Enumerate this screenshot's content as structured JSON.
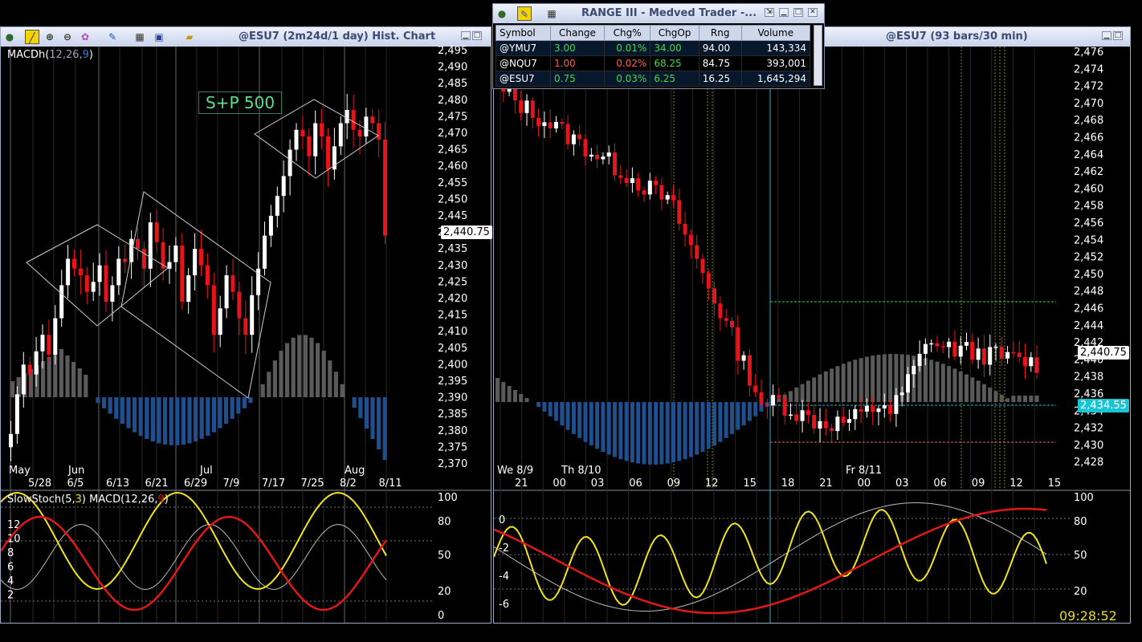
{
  "left_window": {
    "title": "@ESU7 (2m24d/1 day) Hist. Chart",
    "indicator_label": "MACDh(12,26,9)",
    "indicator_name": "MACDh(",
    "indicator_params": "12,26,",
    "indicator_signal": "9",
    "indicator_close": ")",
    "annotation": "S+P 500",
    "last_price": "2,440.75",
    "y_ticks": [
      "2,495",
      "2,490",
      "2,485",
      "2,480",
      "2,475",
      "2,470",
      "2,465",
      "2,460",
      "2,455",
      "2,450",
      "2,445",
      "2,440",
      "2,435",
      "2,430",
      "2,425",
      "2,420",
      "2,415",
      "2,410",
      "2,405",
      "2,400",
      "2,395",
      "2,390",
      "2,385",
      "2,380",
      "2,375",
      "2,370"
    ],
    "month_labels": [
      "May",
      "Jun",
      "Jul",
      "Aug"
    ],
    "date_labels": [
      "5/28",
      "6/5",
      "6/13",
      "6/21",
      "6/29",
      "7/9",
      "7/17",
      "7/25",
      "8/2",
      "8/11"
    ],
    "lower_label": "SlowStoch(5,3) MACD(12,26,9)",
    "lower_y_left": [
      "12",
      "10",
      "8",
      "6",
      "4",
      "2"
    ],
    "lower_y_right": [
      "100",
      "80",
      "50",
      "20",
      "0"
    ]
  },
  "right_window": {
    "title": "@ESU7 (93 bars/30 min)",
    "last_price": "2,440.75",
    "level_price": "2,434.55",
    "y_ticks": [
      "2,476",
      "2,474",
      "2,472",
      "2,470",
      "2,468",
      "2,466",
      "2,464",
      "2,462",
      "2,460",
      "2,458",
      "2,456",
      "2,454",
      "2,452",
      "2,450",
      "2,448",
      "2,446",
      "2,444",
      "2,442",
      "2,440",
      "2,438",
      "2,436",
      "2,434",
      "2,432",
      "2,430",
      "2,428"
    ],
    "day_labels": [
      "We 8/9",
      "Th 8/10",
      "Fr 8/11"
    ],
    "hour_labels": [
      "21",
      "00",
      "03",
      "06",
      "09",
      "12",
      "15",
      "18",
      "21",
      "00",
      "03",
      "06",
      "09",
      "12",
      "15"
    ],
    "lower_y_left": [
      "0",
      "-2",
      "-4",
      "-6"
    ],
    "lower_y_right": [
      "100",
      "80",
      "50",
      "20"
    ],
    "clock": "09:28:52"
  },
  "range_window": {
    "title": "RANGE III - Medved Trader -...",
    "columns": [
      "Symbol",
      "Change",
      "Chg%",
      "ChgOp",
      "Rng",
      "Volume"
    ],
    "rows": [
      {
        "symbol": "@YMU7",
        "change": "3.00",
        "chgpct": "0.01%",
        "chgop": "34.00",
        "rng": "94.00",
        "volume": "143,334"
      },
      {
        "symbol": "@NQU7",
        "change": "1.00",
        "chgpct": "0.02%",
        "chgop": "68.25",
        "rng": "84.75",
        "volume": "393,001"
      },
      {
        "symbol": "@ESU7",
        "change": "0.75",
        "chgpct": "0.03%",
        "chgop": "6.25",
        "rng": "16.25",
        "volume": "1,645,294"
      }
    ]
  },
  "colors": {
    "up": "#ffffff",
    "down": "#e8141b",
    "hist_pos": "#5a5a5a",
    "hist_neg": "#1f4f8f",
    "stoch": "#f2e21e",
    "macd": "#e01818",
    "signal": "#bbbbbb",
    "header": "#3a4a72"
  }
}
